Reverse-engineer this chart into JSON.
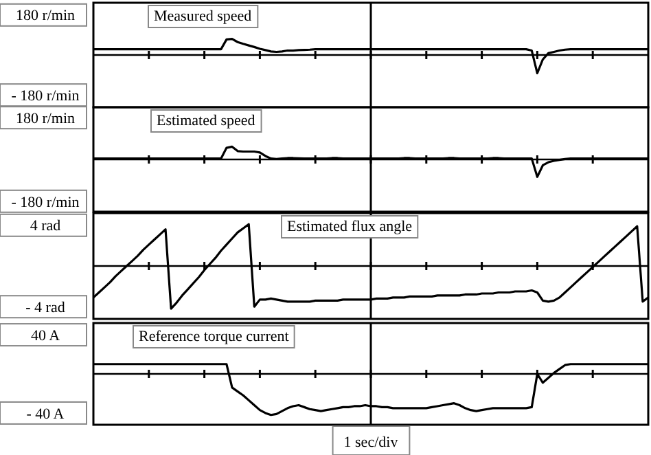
{
  "chart_data": [
    {
      "type": "line",
      "annotations": [
        "Measured speed"
      ],
      "categories": [
        null,
        null,
        null,
        null,
        null,
        null,
        null,
        null,
        null,
        null,
        null,
        null,
        null,
        null,
        null,
        null,
        null,
        null,
        null,
        null,
        null,
        null,
        null,
        null,
        null,
        null,
        null,
        null,
        null,
        null,
        null,
        null,
        null,
        null,
        null,
        null,
        null,
        null,
        null,
        null,
        null,
        null,
        null,
        null,
        null,
        null,
        null,
        null,
        null,
        null,
        null,
        null,
        null,
        null,
        null,
        null,
        null,
        null,
        null,
        null,
        null,
        null,
        null,
        null,
        null,
        null,
        null,
        null,
        null,
        null,
        null,
        null,
        null,
        null,
        null,
        null,
        null,
        null,
        null,
        null,
        null,
        null,
        null,
        null,
        null,
        null,
        null,
        null,
        null,
        null,
        null,
        null,
        null,
        null,
        null,
        null,
        null,
        null,
        null,
        null,
        null
      ],
      "ylim": [
        -235,
        235
      ],
      "yticks": [
        {
          "value": 180,
          "label": "180 r/min"
        },
        {
          "value": -180,
          "label": "- 180 r/min"
        }
      ],
      "tick_labels": "y",
      "series": [
        {
          "color": "#000000",
          "values": [
            26,
            26,
            26,
            26,
            26,
            26,
            26,
            26,
            26,
            26,
            26,
            26,
            26,
            26,
            26,
            26,
            26,
            26,
            26,
            26,
            26,
            26,
            26,
            26,
            70,
            72,
            58,
            50,
            43,
            36,
            28,
            22,
            16,
            14,
            16,
            20,
            20,
            22,
            23,
            24,
            26,
            26,
            26,
            26,
            26,
            26,
            26,
            26,
            26,
            26,
            26,
            26,
            26,
            26,
            26,
            26,
            26,
            26,
            26,
            26,
            26,
            26,
            26,
            26,
            26,
            26,
            26,
            26,
            26,
            26,
            26,
            26,
            26,
            26,
            26,
            26,
            26,
            26,
            26,
            20,
            -82,
            -20,
            8,
            14,
            20,
            24,
            26,
            26,
            26,
            26,
            26,
            26,
            26,
            26,
            26,
            26,
            26,
            26,
            26,
            26,
            26
          ]
        }
      ]
    },
    {
      "type": "line",
      "annotations": [
        "Estimated speed"
      ],
      "categories": [
        null,
        null,
        null,
        null,
        null,
        null,
        null,
        null,
        null,
        null,
        null,
        null,
        null,
        null,
        null,
        null,
        null,
        null,
        null,
        null,
        null,
        null,
        null,
        null,
        null,
        null,
        null,
        null,
        null,
        null,
        null,
        null,
        null,
        null,
        null,
        null,
        null,
        null,
        null,
        null,
        null,
        null,
        null,
        null,
        null,
        null,
        null,
        null,
        null,
        null,
        null,
        null,
        null,
        null,
        null,
        null,
        null,
        null,
        null,
        null,
        null,
        null,
        null,
        null,
        null,
        null,
        null,
        null,
        null,
        null,
        null,
        null,
        null,
        null,
        null,
        null,
        null,
        null,
        null,
        null,
        null,
        null,
        null,
        null,
        null,
        null,
        null,
        null,
        null,
        null,
        null,
        null,
        null,
        null,
        null,
        null,
        null,
        null,
        null,
        null,
        null
      ],
      "ylim": [
        -225,
        225
      ],
      "yticks": [
        {
          "value": 180,
          "label": "180 r/min"
        },
        {
          "value": -180,
          "label": "- 180 r/min"
        }
      ],
      "tick_labels": "y",
      "series": [
        {
          "color": "#000000",
          "values": [
            4,
            4,
            4,
            4,
            4,
            4,
            4,
            4,
            4,
            4,
            4,
            4,
            4,
            4,
            4,
            4,
            4,
            4,
            4,
            4,
            4,
            4,
            4,
            4,
            50,
            55,
            36,
            34,
            34,
            34,
            30,
            15,
            4,
            2,
            4,
            6,
            6,
            5,
            4,
            4,
            4,
            4,
            4,
            6,
            6,
            4,
            4,
            4,
            4,
            4,
            4,
            4,
            4,
            4,
            4,
            4,
            6,
            6,
            4,
            4,
            4,
            4,
            4,
            4,
            6,
            6,
            4,
            4,
            4,
            4,
            4,
            4,
            6,
            6,
            4,
            4,
            4,
            4,
            4,
            4,
            -75,
            -25,
            -12,
            -6,
            -2,
            2,
            4,
            4,
            4,
            4,
            4,
            4,
            4,
            4,
            4,
            4,
            4,
            4,
            4,
            4,
            4
          ]
        }
      ]
    },
    {
      "type": "line",
      "annotations": [
        "Estimated flux angle"
      ],
      "categories": [
        null,
        null,
        null,
        null,
        null,
        null,
        null,
        null,
        null,
        null,
        null,
        null,
        null,
        null,
        null,
        null,
        null,
        null,
        null,
        null,
        null,
        null,
        null,
        null,
        null,
        null,
        null,
        null,
        null,
        null,
        null,
        null,
        null,
        null,
        null,
        null,
        null,
        null,
        null,
        null,
        null,
        null,
        null,
        null,
        null,
        null,
        null,
        null,
        null,
        null,
        null,
        null,
        null,
        null,
        null,
        null,
        null,
        null,
        null,
        null,
        null,
        null,
        null,
        null,
        null,
        null,
        null,
        null,
        null,
        null,
        null,
        null,
        null,
        null,
        null,
        null,
        null,
        null,
        null,
        null,
        null,
        null,
        null,
        null,
        null,
        null,
        null,
        null,
        null,
        null,
        null,
        null,
        null,
        null,
        null,
        null,
        null,
        null,
        null,
        null,
        null
      ],
      "ylim": [
        -5.2,
        5.2
      ],
      "yticks": [
        {
          "value": 4,
          "label": "4 rad"
        },
        {
          "value": -4,
          "label": "- 4 rad"
        }
      ],
      "tick_labels": "y",
      "series": [
        {
          "color": "#000000",
          "values": [
            -3.1,
            -2.6,
            -2.1,
            -1.6,
            -1.0,
            -0.5,
            0.0,
            0.5,
            1.0,
            1.6,
            2.1,
            2.6,
            3.1,
            3.6,
            -4.2,
            -3.6,
            -2.9,
            -2.3,
            -1.7,
            -1.1,
            -0.4,
            0.2,
            0.8,
            1.5,
            2.1,
            2.7,
            3.3,
            3.7,
            4.1,
            -4.0,
            -3.3,
            -3.3,
            -3.2,
            -3.3,
            -3.4,
            -3.5,
            -3.5,
            -3.5,
            -3.5,
            -3.5,
            -3.4,
            -3.4,
            -3.4,
            -3.4,
            -3.4,
            -3.3,
            -3.3,
            -3.3,
            -3.3,
            -3.3,
            -3.3,
            -3.2,
            -3.2,
            -3.2,
            -3.1,
            -3.1,
            -3.1,
            -3.0,
            -3.0,
            -3.0,
            -3.0,
            -3.0,
            -2.9,
            -2.9,
            -2.9,
            -2.9,
            -2.9,
            -2.8,
            -2.8,
            -2.8,
            -2.7,
            -2.7,
            -2.7,
            -2.6,
            -2.6,
            -2.6,
            -2.5,
            -2.5,
            -2.5,
            -2.4,
            -2.6,
            -3.4,
            -3.5,
            -3.4,
            -3.1,
            -2.6,
            -2.1,
            -1.6,
            -1.1,
            -0.6,
            -0.1,
            0.4,
            0.9,
            1.4,
            1.9,
            2.4,
            2.9,
            3.4,
            3.9,
            -3.5,
            -3.1
          ]
        }
      ]
    },
    {
      "type": "line",
      "annotations": [
        "Reference torque current"
      ],
      "xlabel": "1 sec/div",
      "categories": [
        null,
        null,
        null,
        null,
        null,
        null,
        null,
        null,
        null,
        null,
        null,
        null,
        null,
        null,
        null,
        null,
        null,
        null,
        null,
        null,
        null,
        null,
        null,
        null,
        null,
        null,
        null,
        null,
        null,
        null,
        null,
        null,
        null,
        null,
        null,
        null,
        null,
        null,
        null,
        null,
        null,
        null,
        null,
        null,
        null,
        null,
        null,
        null,
        null,
        null,
        null,
        null,
        null,
        null,
        null,
        null,
        null,
        null,
        null,
        null,
        null,
        null,
        null,
        null,
        null,
        null,
        null,
        null,
        null,
        null,
        null,
        null,
        null,
        null,
        null,
        null,
        null,
        null,
        null,
        null,
        null,
        null,
        null,
        null,
        null,
        null,
        null,
        null,
        null,
        null,
        null,
        null,
        null,
        null,
        null,
        null,
        null,
        null,
        null,
        null,
        null
      ],
      "ylim": [
        -52,
        52
      ],
      "yticks": [
        {
          "value": 40,
          "label": "40 A"
        },
        {
          "value": -40,
          "label": "- 40 A"
        }
      ],
      "tick_labels": "y",
      "series": [
        {
          "color": "#000000",
          "values": [
            10,
            10,
            10,
            10,
            10,
            10,
            10,
            10,
            10,
            10,
            10,
            10,
            10,
            10,
            10,
            10,
            10,
            10,
            10,
            10,
            10,
            10,
            10,
            10,
            10,
            -14,
            -18,
            -22,
            -27,
            -32,
            -37,
            -40,
            -42,
            -41,
            -38,
            -35,
            -33,
            -32,
            -34,
            -36,
            -37,
            -38,
            -37,
            -36,
            -35,
            -34,
            -34,
            -33,
            -33,
            -32,
            -33,
            -33,
            -34,
            -34,
            -35,
            -35,
            -35,
            -35,
            -35,
            -35,
            -35,
            -34,
            -33,
            -32,
            -31,
            -30,
            -32,
            -35,
            -37,
            -38,
            -37,
            -36,
            -35,
            -35,
            -35,
            -35,
            -35,
            -35,
            -35,
            -34,
            0,
            -9,
            -4,
            1,
            5,
            9,
            10,
            10,
            10,
            10,
            10,
            10,
            10,
            10,
            10,
            10,
            10,
            10,
            10,
            10,
            10
          ]
        }
      ]
    }
  ]
}
